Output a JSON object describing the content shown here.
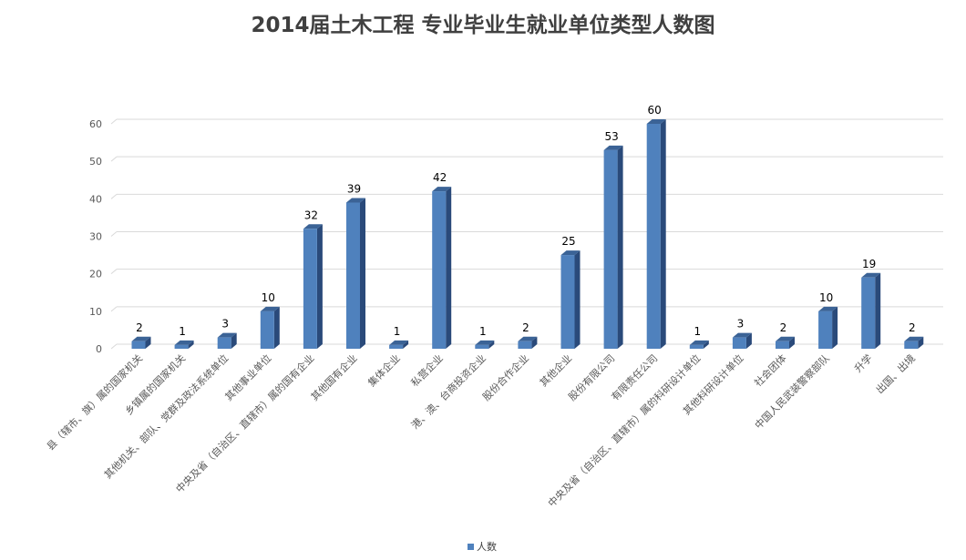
{
  "title": "2014届土木工程 专业毕业生就业单位类型人数图",
  "colors": {
    "bar_front": "#4F81BD",
    "bar_side": "#2A4A7A",
    "bar_top": "#3B6396",
    "grid": "#D9D9D9"
  },
  "chart_data": {
    "type": "bar",
    "title": "2014届土木工程 专业毕业生就业单位类型人数图",
    "xlabel": "",
    "ylabel": "",
    "ylim": [
      0,
      60
    ],
    "yticks": [
      0,
      10,
      20,
      30,
      40,
      50,
      60
    ],
    "grid": true,
    "legend_position": "bottom",
    "categories": [
      "县（辖市、旗）属的国家机关",
      "乡镇属的国家机关",
      "其他机关、部队、党群及政法系统单位",
      "其他事业单位",
      "中央及省（自治区、直辖市）属的国有企业",
      "其他国有企业",
      "集体企业",
      "私营企业",
      "港、澳、台商投资企业",
      "股份合作企业",
      "其他企业",
      "股份有限公司",
      "有限责任公司",
      "中央及省（自治区、直辖市）属的科研设计单位",
      "其他科研设计单位",
      "社会团体",
      "中国人民武装警察部队",
      "升学",
      "出国、出境"
    ],
    "series": [
      {
        "name": "人数",
        "values": [
          2,
          1,
          3,
          10,
          32,
          39,
          1,
          42,
          1,
          2,
          25,
          53,
          60,
          1,
          3,
          2,
          10,
          19,
          2
        ]
      }
    ]
  }
}
